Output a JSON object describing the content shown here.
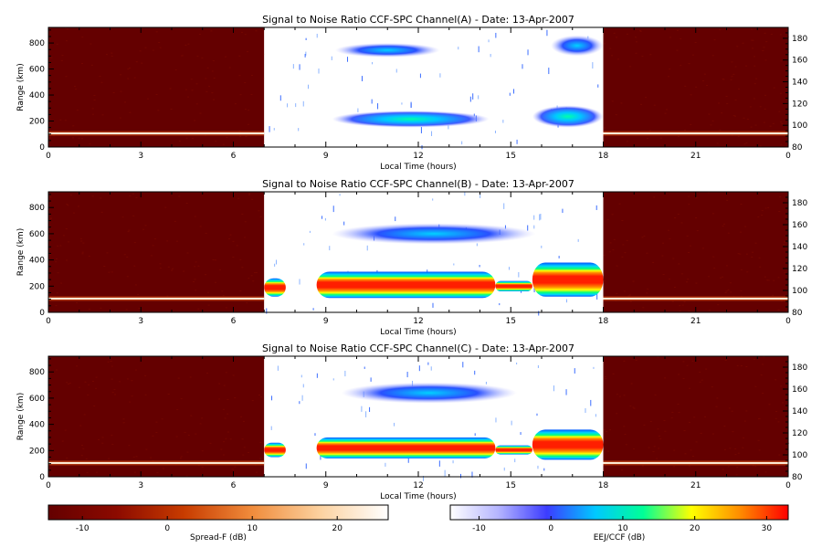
{
  "chart_data": [
    {
      "type": "heatmap",
      "title": "Signal to Noise Ratio CCF-SPC Channel(A) - Date: 13-Apr-2007",
      "xlabel": "Local Time (hours)",
      "ylabel": "Range (km)",
      "xlim": [
        0,
        24
      ],
      "ylim": [
        0,
        920
      ],
      "y2lim": [
        80,
        190
      ],
      "xticks": [
        "0",
        "3",
        "6",
        "9",
        "12",
        "15",
        "18",
        "21",
        "0"
      ],
      "yticks": [
        "0",
        "200",
        "400",
        "600",
        "800"
      ],
      "y2ticks": [
        "80",
        "100",
        "120",
        "140",
        "160",
        "180"
      ],
      "spreadF_hours": [
        [
          0,
          7
        ],
        [
          18,
          24
        ]
      ],
      "ccf_hours": [
        7,
        18
      ],
      "bands": [
        {
          "t0": 9.3,
          "t1": 12.7,
          "r0": 690,
          "r1": 800,
          "peak": -3
        },
        {
          "t0": 16.3,
          "t1": 18.0,
          "r0": 700,
          "r1": 860,
          "peak": -4
        },
        {
          "t0": 9.2,
          "t1": 14.3,
          "r0": 150,
          "r1": 280,
          "peak": 5
        },
        {
          "t0": 15.7,
          "t1": 18.0,
          "r0": 150,
          "r1": 320,
          "peak": 5
        }
      ]
    },
    {
      "type": "heatmap",
      "title": "Signal to Noise Ratio CCF-SPC Channel(B) - Date: 13-Apr-2007",
      "xlabel": "Local Time (hours)",
      "ylabel": "Range (km)",
      "xlim": [
        0,
        24
      ],
      "ylim": [
        0,
        920
      ],
      "y2lim": [
        80,
        190
      ],
      "xticks": [
        "0",
        "3",
        "6",
        "9",
        "12",
        "15",
        "18",
        "21",
        "0"
      ],
      "yticks": [
        "0",
        "200",
        "400",
        "600",
        "800"
      ],
      "y2ticks": [
        "80",
        "100",
        "120",
        "140",
        "160",
        "180"
      ],
      "spreadF_hours": [
        [
          0,
          7
        ],
        [
          18,
          24
        ]
      ],
      "ccf_hours": [
        7,
        18
      ],
      "bands": [
        {
          "t0": 9.2,
          "t1": 15.8,
          "r0": 520,
          "r1": 680,
          "peak": -2
        },
        {
          "t0": 7.0,
          "t1": 7.7,
          "r0": 120,
          "r1": 260,
          "peak": 28
        },
        {
          "t0": 8.7,
          "t1": 14.5,
          "r0": 110,
          "r1": 310,
          "peak": 30
        },
        {
          "t0": 14.5,
          "t1": 15.7,
          "r0": 160,
          "r1": 240,
          "peak": 25
        },
        {
          "t0": 15.7,
          "t1": 18.0,
          "r0": 120,
          "r1": 380,
          "peak": 30
        }
      ]
    },
    {
      "type": "heatmap",
      "title": "Signal to Noise Ratio CCF-SPC Channel(C) - Date: 13-Apr-2007",
      "xlabel": "Local Time (hours)",
      "ylabel": "Range (km)",
      "xlim": [
        0,
        24
      ],
      "ylim": [
        0,
        920
      ],
      "y2lim": [
        80,
        190
      ],
      "xticks": [
        "0",
        "3",
        "6",
        "9",
        "12",
        "15",
        "18",
        "21",
        "0"
      ],
      "yticks": [
        "0",
        "200",
        "400",
        "600",
        "800"
      ],
      "y2ticks": [
        "80",
        "100",
        "120",
        "140",
        "160",
        "180"
      ],
      "spreadF_hours": [
        [
          0,
          7
        ],
        [
          18,
          24
        ]
      ],
      "ccf_hours": [
        7,
        18
      ],
      "bands": [
        {
          "t0": 9.5,
          "t1": 15.2,
          "r0": 560,
          "r1": 720,
          "peak": -3
        },
        {
          "t0": 7.0,
          "t1": 7.7,
          "r0": 150,
          "r1": 260,
          "peak": 28
        },
        {
          "t0": 8.7,
          "t1": 14.5,
          "r0": 140,
          "r1": 300,
          "peak": 30
        },
        {
          "t0": 14.5,
          "t1": 15.7,
          "r0": 170,
          "r1": 240,
          "peak": 25
        },
        {
          "t0": 15.7,
          "t1": 18.0,
          "r0": 130,
          "r1": 360,
          "peak": 30
        }
      ]
    }
  ],
  "colorbars": [
    {
      "label": "Spread-F (dB)",
      "range": [
        -14,
        26
      ],
      "ticks": [
        "-10",
        "0",
        "10",
        "20"
      ],
      "tick_values": [
        -10,
        0,
        10,
        20
      ],
      "colors": [
        "#640000",
        "#8c0a00",
        "#c83c00",
        "#f08c3c",
        "#fcd2a0",
        "#ffffff"
      ]
    },
    {
      "label": "EEJ/CCF (dB)",
      "range": [
        -14,
        33
      ],
      "ticks": [
        "-10",
        "0",
        "10",
        "20",
        "30"
      ],
      "tick_values": [
        -10,
        0,
        10,
        20,
        30
      ],
      "colors": [
        "#ffffff",
        "#b4b4ff",
        "#3c3cff",
        "#00c8ff",
        "#00ff96",
        "#ffff00",
        "#ff8c00",
        "#ff0000"
      ]
    }
  ],
  "colors": {
    "spread_f_background": "#640000",
    "trace": "#fff0dc"
  }
}
